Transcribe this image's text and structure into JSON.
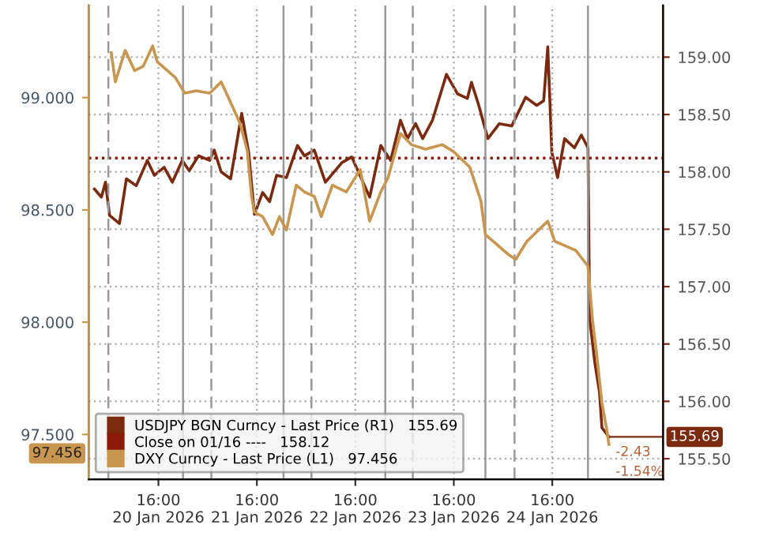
{
  "chart_data": {
    "type": "line",
    "xlim": [
      "2026-01-19T23:00",
      "2026-01-25T19:00"
    ],
    "xticks": [
      {
        "value": "2026-01-20T16:00",
        "label": "16:00\n20 Jan 2026"
      },
      {
        "value": "2026-01-21T16:00",
        "label": "16:00\n21 Jan 2026"
      },
      {
        "value": "2026-01-22T16:00",
        "label": "16:00\n22 Jan 2026"
      },
      {
        "value": "2026-01-23T16:00",
        "label": "16:00\n23 Jan 2026"
      },
      {
        "value": "2026-01-24T16:00",
        "label": "16:00\n24 Jan 2026"
      }
    ],
    "ylim": [
      97.3,
      99.41
    ],
    "yticks": [
      {
        "value": 97.5,
        "label": "97.500"
      },
      {
        "value": 98.0,
        "label": "98.000"
      },
      {
        "value": 98.5,
        "label": "98.500"
      },
      {
        "value": 99.0,
        "label": "99.000"
      }
    ],
    "y2lim": [
      155.32,
      159.45
    ],
    "y2ticks": [
      {
        "value": 155.5,
        "label": "155.50"
      },
      {
        "value": 156.0,
        "label": "156.00"
      },
      {
        "value": 156.5,
        "label": "156.50"
      },
      {
        "value": 157.0,
        "label": "157.00"
      },
      {
        "value": 157.5,
        "label": "157.50"
      },
      {
        "value": 158.0,
        "label": "158.00"
      },
      {
        "value": 158.5,
        "label": "158.50"
      },
      {
        "value": 159.0,
        "label": "159.00"
      }
    ],
    "grid": true,
    "legend": "bottom left",
    "series": [
      {
        "name": "USDJPY BGN Curncy - Last Price (R1)   155.69",
        "color": "#7b2a10",
        "axis": "y2",
        "x": [
          "2026-01-20T00:24",
          "2026-01-20T02:06",
          "2026-01-20T03:06",
          "2026-01-20T04:06",
          "2026-01-20T06:30",
          "2026-01-20T08:12",
          "2026-01-20T10:36",
          "2026-01-20T13:18",
          "2026-01-20T15:00",
          "2026-01-20T17:24",
          "2026-01-20T19:24",
          "2026-01-20T21:48",
          "2026-01-20T23:30",
          "2026-01-21T01:48",
          "2026-01-21T04:30",
          "2026-01-21T05:36",
          "2026-01-21T07:18",
          "2026-01-21T09:36",
          "2026-01-21T12:18",
          "2026-01-21T14:00",
          "2026-01-21T15:24",
          "2026-01-21T17:24",
          "2026-01-21T19:06",
          "2026-01-21T20:48",
          "2026-01-21T23:12",
          "2026-01-22T01:54",
          "2026-01-22T03:36",
          "2026-01-22T06:00",
          "2026-01-22T08:42",
          "2026-01-22T12:42",
          "2026-01-22T15:06",
          "2026-01-22T19:30",
          "2026-01-22T22:12",
          "2026-01-23T00:36",
          "2026-01-23T03:00",
          "2026-01-23T04:42",
          "2026-01-23T06:42",
          "2026-01-23T08:24",
          "2026-01-23T10:48",
          "2026-01-23T14:12",
          "2026-01-23T16:54",
          "2026-01-23T19:18",
          "2026-01-23T20:18",
          "2026-01-23T22:00",
          "2026-01-24T00:18",
          "2026-01-24T03:06",
          "2026-01-24T06:06",
          "2026-01-24T09:30",
          "2026-01-24T12:12",
          "2026-01-24T13:54",
          "2026-01-24T14:54",
          "2026-01-24T15:54",
          "2026-01-24T17:18",
          "2026-01-24T19:00",
          "2026-01-24T21:24",
          "2026-01-24T23:06",
          "2026-01-25T00:42",
          "2026-01-25T01:06",
          "2026-01-25T02:24",
          "2026-01-25T03:30",
          "2026-01-25T04:06",
          "2026-01-25T05:48"
        ],
        "values": [
          157.85,
          157.78,
          157.91,
          157.62,
          157.55,
          157.94,
          157.88,
          158.1,
          157.97,
          158.04,
          157.91,
          158.1,
          158.01,
          158.14,
          158.1,
          158.19,
          158.0,
          157.94,
          158.51,
          158.17,
          157.63,
          157.82,
          157.74,
          157.97,
          157.95,
          158.23,
          158.14,
          158.19,
          157.91,
          158.08,
          158.13,
          157.78,
          158.23,
          158.1,
          158.45,
          158.29,
          158.42,
          158.29,
          158.45,
          158.85,
          158.68,
          158.64,
          158.78,
          158.59,
          158.29,
          158.42,
          158.4,
          158.65,
          158.58,
          158.62,
          159.09,
          158.17,
          157.95,
          158.29,
          158.21,
          158.32,
          158.21,
          156.72,
          156.33,
          156.08,
          155.77,
          155.69
        ],
        "value_labels": [
          null,
          null,
          null,
          null,
          null,
          null,
          null,
          null,
          null,
          null,
          null,
          null,
          null,
          null,
          null,
          null,
          null,
          null,
          null,
          null,
          null,
          null,
          null,
          null,
          null,
          null,
          null,
          null,
          null,
          null,
          null,
          null,
          null,
          null,
          null,
          null,
          null,
          null,
          null,
          null,
          null,
          null,
          null,
          null,
          null,
          null,
          null,
          null,
          null,
          null,
          null,
          null,
          null,
          null,
          null,
          null,
          null,
          null,
          null,
          null,
          null,
          "155.69"
        ]
      },
      {
        "name": "DXY Curncy - Last Price (L1)   97.456",
        "color": "#c99650",
        "x": [
          "2026-01-20T04:30",
          "2026-01-20T05:30",
          "2026-01-20T07:54",
          "2026-01-20T10:12",
          "2026-01-20T12:18",
          "2026-01-20T14:36",
          "2026-01-20T15:42",
          "2026-01-20T20:06",
          "2026-01-20T22:24",
          "2026-01-21T01:12",
          "2026-01-21T04:30",
          "2026-01-21T07:18",
          "2026-01-21T10:18",
          "2026-01-21T12:00",
          "2026-01-21T13:42",
          "2026-01-21T14:42",
          "2026-01-21T15:24",
          "2026-01-21T17:24",
          "2026-01-21T19:48",
          "2026-01-21T21:30",
          "2026-01-21T23:12",
          "2026-01-22T01:36",
          "2026-01-22T03:36",
          "2026-01-22T06:00",
          "2026-01-22T07:42",
          "2026-01-22T10:24",
          "2026-01-22T13:48",
          "2026-01-22T17:12",
          "2026-01-22T19:30",
          "2026-01-22T22:12",
          "2026-01-22T23:54",
          "2026-01-23T03:00",
          "2026-01-23T05:42",
          "2026-01-23T09:06",
          "2026-01-23T13:12",
          "2026-01-23T15:54",
          "2026-01-23T19:54",
          "2026-01-23T22:36",
          "2026-01-23T23:42",
          "2026-01-24T05:24",
          "2026-01-24T07:06",
          "2026-01-24T09:48",
          "2026-01-24T14:54",
          "2026-01-24T16:36",
          "2026-01-24T21:42",
          "2026-01-25T00:42",
          "2026-01-25T01:48",
          "2026-01-25T02:48",
          "2026-01-25T04:06",
          "2026-01-25T05:12",
          "2026-01-25T05:48"
        ],
        "values": [
          99.2,
          99.07,
          99.21,
          99.12,
          99.14,
          99.23,
          99.16,
          99.09,
          99.02,
          99.03,
          99.02,
          99.07,
          98.95,
          98.88,
          98.76,
          98.56,
          98.49,
          98.47,
          98.39,
          98.47,
          98.41,
          98.61,
          98.58,
          98.56,
          98.47,
          98.61,
          98.58,
          98.68,
          98.45,
          98.58,
          98.64,
          98.84,
          98.79,
          98.77,
          98.79,
          98.76,
          98.69,
          98.54,
          98.39,
          98.3,
          98.28,
          98.36,
          98.45,
          98.36,
          98.32,
          98.25,
          98.01,
          97.86,
          97.64,
          97.53,
          97.456
        ],
        "value_labels": [
          null,
          null,
          null,
          null,
          null,
          null,
          null,
          null,
          null,
          null,
          null,
          null,
          null,
          null,
          null,
          null,
          null,
          null,
          null,
          null,
          null,
          null,
          null,
          null,
          null,
          null,
          null,
          null,
          null,
          null,
          null,
          null,
          null,
          null,
          null,
          null,
          null,
          null,
          null,
          null,
          null,
          null,
          null,
          null,
          null,
          null,
          null,
          null,
          null,
          null,
          null
        ]
      }
    ],
    "ref_lines": [
      {
        "axis": "y2",
        "value": 158.12,
        "label": "Close on 01/16 ----   158.12",
        "color": "#8b1a0a",
        "line_style": "dotted"
      },
      {
        "axis": "x",
        "value": "2026-01-20T03:48",
        "label": null,
        "color": "#999999",
        "line_style": "dashed"
      },
      {
        "axis": "x",
        "value": "2026-01-21T04:54",
        "label": null,
        "color": "#999999",
        "line_style": "dashed"
      },
      {
        "axis": "x",
        "value": "2026-01-22T05:18",
        "label": null,
        "color": "#999999",
        "line_style": "dashed"
      },
      {
        "axis": "x",
        "value": "2026-01-23T06:00",
        "label": null,
        "color": "#999999",
        "line_style": "dashed"
      },
      {
        "axis": "x",
        "value": "2026-01-24T06:48",
        "label": null,
        "color": "#999999",
        "line_style": "dashed"
      },
      {
        "axis": "x",
        "value": "2026-01-20T22:00",
        "label": null,
        "color": "#999999",
        "line_style": "solid"
      },
      {
        "axis": "x",
        "value": "2026-01-21T22:30",
        "label": null,
        "color": "#999999",
        "line_style": "solid"
      },
      {
        "axis": "x",
        "value": "2026-01-22T23:18",
        "label": null,
        "color": "#999999",
        "line_style": "solid"
      },
      {
        "axis": "x",
        "value": "2026-01-23T23:42",
        "label": null,
        "color": "#999999",
        "line_style": "solid"
      },
      {
        "axis": "x",
        "value": "2026-01-25T00:42",
        "label": null,
        "color": "#999999",
        "line_style": "solid"
      }
    ],
    "annotations": [
      "-2.43",
      "-1.54%",
      "97.456"
    ]
  }
}
